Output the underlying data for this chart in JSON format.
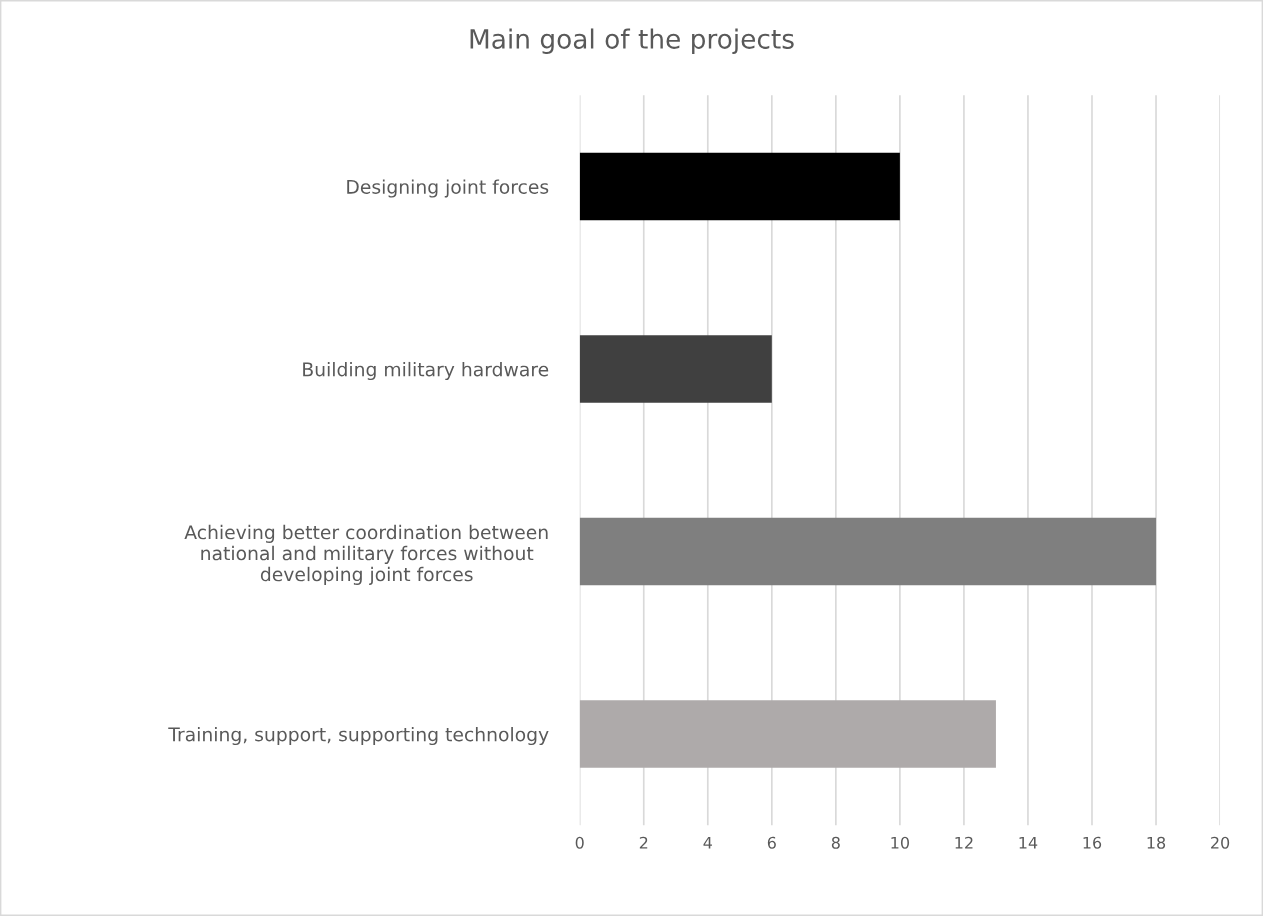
{
  "chart_data": {
    "type": "bar",
    "orientation": "horizontal",
    "title": "Main goal of the projects",
    "categories": [
      "Designing joint forces",
      "Building military hardware",
      "Achieving better coordination between\nnational and military forces without\ndeveloping joint forces",
      "Training, support, supporting technology"
    ],
    "values": [
      10,
      6,
      18,
      13
    ],
    "colors": [
      "#000000",
      "#404040",
      "#7f7f7f",
      "#aeaaaa"
    ],
    "xlim": [
      0,
      20
    ],
    "xticks": [
      0,
      2,
      4,
      6,
      8,
      10,
      12,
      14,
      16,
      18,
      20
    ],
    "grid": "x",
    "legend": false
  }
}
